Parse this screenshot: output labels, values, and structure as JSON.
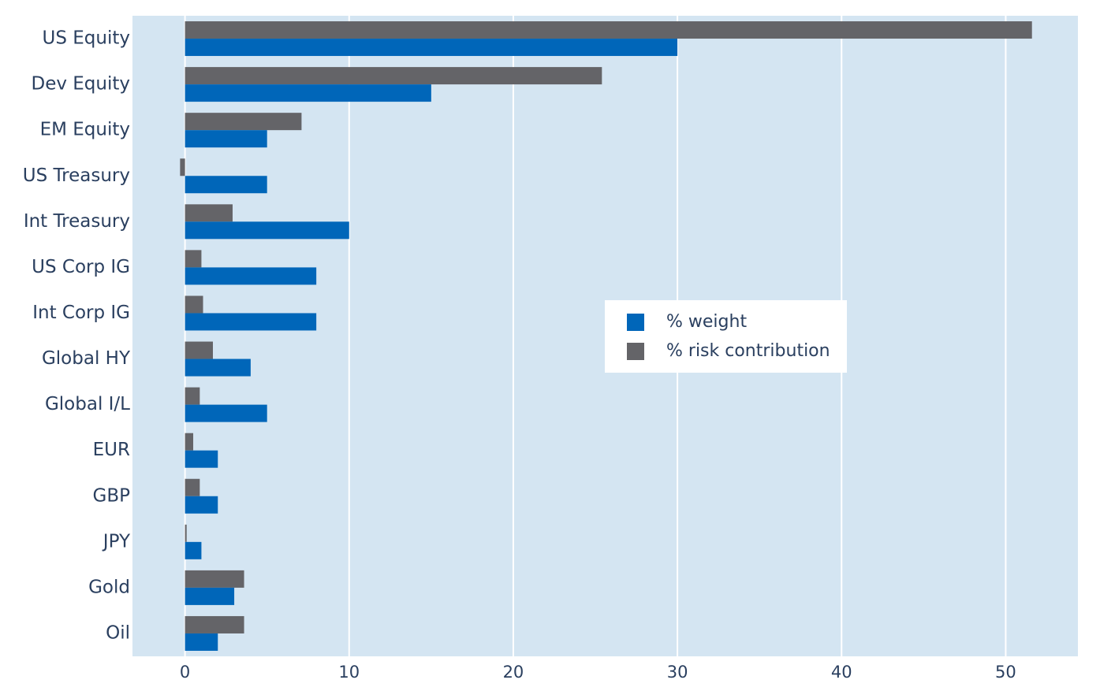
{
  "chart_data": {
    "type": "bar",
    "orientation": "horizontal",
    "categories": [
      "US Equity",
      "Dev Equity",
      "EM Equity",
      "US Treasury",
      "Int Treasury",
      "US Corp IG",
      "Int Corp IG",
      "Global HY",
      "Global I/L",
      "EUR",
      "GBP",
      "JPY",
      "Gold",
      "Oil"
    ],
    "series": [
      {
        "name": "% weight",
        "color": "#0066b9",
        "values": [
          30,
          15,
          5,
          5,
          10,
          8,
          8,
          4,
          5,
          2,
          2,
          1,
          3,
          2
        ]
      },
      {
        "name": "% risk contribution",
        "color": "#646468",
        "values": [
          51.6,
          25.4,
          7.1,
          -0.3,
          2.9,
          1.0,
          1.1,
          1.7,
          0.9,
          0.5,
          0.9,
          0.1,
          3.6,
          3.6
        ]
      }
    ],
    "xticks": [
      0,
      10,
      20,
      30,
      40,
      50
    ],
    "xlim": [
      -3.2,
      54.4
    ],
    "grid": true,
    "legend_position": "center-right",
    "plot_background": "#d4e5f2",
    "grid_color": "#ffffff"
  }
}
